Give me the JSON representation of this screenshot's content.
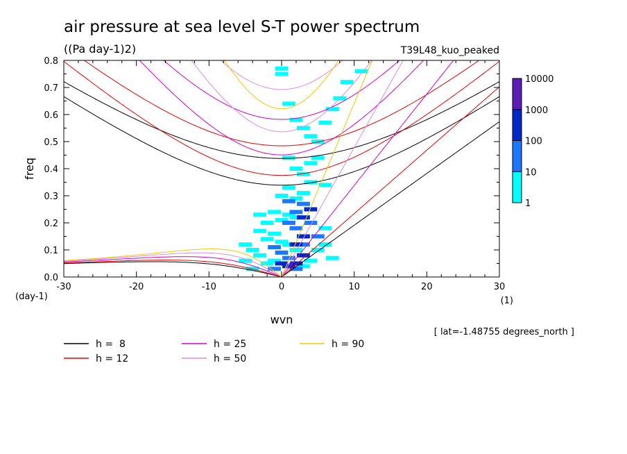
{
  "chart_data": {
    "type": "heatmap",
    "title": "air pressure at sea level S-T power spectrum",
    "subtitle": "((Pa day-1)2)",
    "run_label": "T39L48_kuo_peaked",
    "xlabel": "wvn",
    "x_unit": "(1)",
    "ylabel": "freq",
    "y_unit": "(day-1)",
    "xlim": [
      -30,
      30
    ],
    "ylim": [
      0,
      0.8
    ],
    "x_ticks": [
      -30,
      -20,
      -10,
      0,
      10,
      20,
      30
    ],
    "y_ticks": [
      0.0,
      0.1,
      0.2,
      0.3,
      0.4,
      0.5,
      0.6,
      0.7,
      0.8
    ],
    "x_tick_labels": [
      "-30",
      "-20",
      "-10",
      "0",
      "10",
      "20",
      "30"
    ],
    "y_tick_labels": [
      "0.0",
      "0.1",
      "0.2",
      "0.3",
      "0.4",
      "0.5",
      "0.6",
      "0.7",
      "0.8"
    ],
    "latitude_note": "[ lat=-1.48755 degrees_north ]",
    "colorbar": {
      "levels": [
        "1",
        "10",
        "100",
        "1000",
        "10000"
      ],
      "colors": [
        "#00ffff",
        "#1e78ff",
        "#0028c8",
        "#5a1eb4"
      ]
    },
    "dispersion_curves": [
      {
        "label": "h =  8",
        "h": 8,
        "color": "#000000"
      },
      {
        "label": "h = 12",
        "h": 12,
        "color": "#e60000"
      },
      {
        "label": "h = 25",
        "h": 25,
        "color": "#d200c8"
      },
      {
        "label": "h = 50",
        "h": 50,
        "color": "#dc8cdc"
      },
      {
        "label": "h = 90",
        "h": 90,
        "color": "#f0c800"
      }
    ],
    "spectrum_samples": [
      {
        "k": 0,
        "f": 0.75,
        "level": 1
      },
      {
        "k": 0,
        "f": 0.77,
        "level": 1
      },
      {
        "k": 1,
        "f": 0.64,
        "level": 1
      },
      {
        "k": 2,
        "f": 0.58,
        "level": 1
      },
      {
        "k": 3,
        "f": 0.55,
        "level": 1
      },
      {
        "k": 4,
        "f": 0.52,
        "level": 1
      },
      {
        "k": 5,
        "f": 0.5,
        "level": 1
      },
      {
        "k": 6,
        "f": 0.57,
        "level": 1
      },
      {
        "k": 7,
        "f": 0.62,
        "level": 1
      },
      {
        "k": 8,
        "f": 0.66,
        "level": 1
      },
      {
        "k": 9,
        "f": 0.72,
        "level": 1
      },
      {
        "k": 11,
        "f": 0.76,
        "level": 1
      },
      {
        "k": 1,
        "f": 0.44,
        "level": 1
      },
      {
        "k": 2,
        "f": 0.4,
        "level": 1
      },
      {
        "k": 3,
        "f": 0.38,
        "level": 1
      },
      {
        "k": 4,
        "f": 0.42,
        "level": 1
      },
      {
        "k": 5,
        "f": 0.44,
        "level": 1
      },
      {
        "k": 0,
        "f": 0.3,
        "level": 1
      },
      {
        "k": 1,
        "f": 0.33,
        "level": 1
      },
      {
        "k": 2,
        "f": 0.29,
        "level": 1
      },
      {
        "k": 3,
        "f": 0.31,
        "level": 1
      },
      {
        "k": 4,
        "f": 0.35,
        "level": 1
      },
      {
        "k": 6,
        "f": 0.34,
        "level": 1
      },
      {
        "k": -3,
        "f": 0.23,
        "level": 1
      },
      {
        "k": -2,
        "f": 0.2,
        "level": 1
      },
      {
        "k": -1,
        "f": 0.24,
        "level": 1
      },
      {
        "k": 0,
        "f": 0.21,
        "level": 1
      },
      {
        "k": 1,
        "f": 0.23,
        "level": 1
      },
      {
        "k": 2,
        "f": 0.22,
        "level": 1
      },
      {
        "k": -3,
        "f": 0.17,
        "level": 1
      },
      {
        "k": -2,
        "f": 0.14,
        "level": 1
      },
      {
        "k": -1,
        "f": 0.16,
        "level": 1
      },
      {
        "k": 0,
        "f": 0.13,
        "level": 1
      },
      {
        "k": 1,
        "f": 0.12,
        "level": 1
      },
      {
        "k": 2,
        "f": 0.1,
        "level": 1
      },
      {
        "k": -5,
        "f": 0.12,
        "level": 1
      },
      {
        "k": -4,
        "f": 0.1,
        "level": 1
      },
      {
        "k": -3,
        "f": 0.08,
        "level": 1
      },
      {
        "k": -2,
        "f": 0.05,
        "level": 1
      },
      {
        "k": -1,
        "f": 0.06,
        "level": 1
      },
      {
        "k": -5,
        "f": 0.06,
        "level": 1
      },
      {
        "k": -4,
        "f": 0.03,
        "level": 1
      },
      {
        "k": 3,
        "f": 0.04,
        "level": 1
      },
      {
        "k": 4,
        "f": 0.06,
        "level": 1
      },
      {
        "k": 5,
        "f": 0.1,
        "level": 1
      },
      {
        "k": 6,
        "f": 0.18,
        "level": 1
      },
      {
        "k": 6,
        "f": 0.12,
        "level": 1
      },
      {
        "k": 7,
        "f": 0.07,
        "level": 1
      },
      {
        "k": 1,
        "f": 0.2,
        "level": 2
      },
      {
        "k": 2,
        "f": 0.24,
        "level": 2
      },
      {
        "k": 3,
        "f": 0.27,
        "level": 2
      },
      {
        "k": 1,
        "f": 0.28,
        "level": 2
      },
      {
        "k": 2,
        "f": 0.18,
        "level": 2
      },
      {
        "k": 0,
        "f": 0.09,
        "level": 2
      },
      {
        "k": 1,
        "f": 0.07,
        "level": 2
      },
      {
        "k": -1,
        "f": 0.11,
        "level": 2
      },
      {
        "k": 3,
        "f": 0.12,
        "level": 2
      },
      {
        "k": 4,
        "f": 0.2,
        "level": 2
      },
      {
        "k": 5,
        "f": 0.15,
        "level": 2
      },
      {
        "k": 2,
        "f": 0.03,
        "level": 2
      },
      {
        "k": -1,
        "f": 0.03,
        "level": 2
      },
      {
        "k": 3,
        "f": 0.22,
        "level": 3
      },
      {
        "k": 4,
        "f": 0.25,
        "level": 3
      },
      {
        "k": 2,
        "f": 0.12,
        "level": 3
      },
      {
        "k": 3,
        "f": 0.08,
        "level": 3
      },
      {
        "k": 1,
        "f": 0.04,
        "level": 3
      },
      {
        "k": 2,
        "f": 0.05,
        "level": 3
      },
      {
        "k": 0,
        "f": 0.05,
        "level": 3
      },
      {
        "k": 3,
        "f": 0.15,
        "level": 3
      }
    ]
  }
}
